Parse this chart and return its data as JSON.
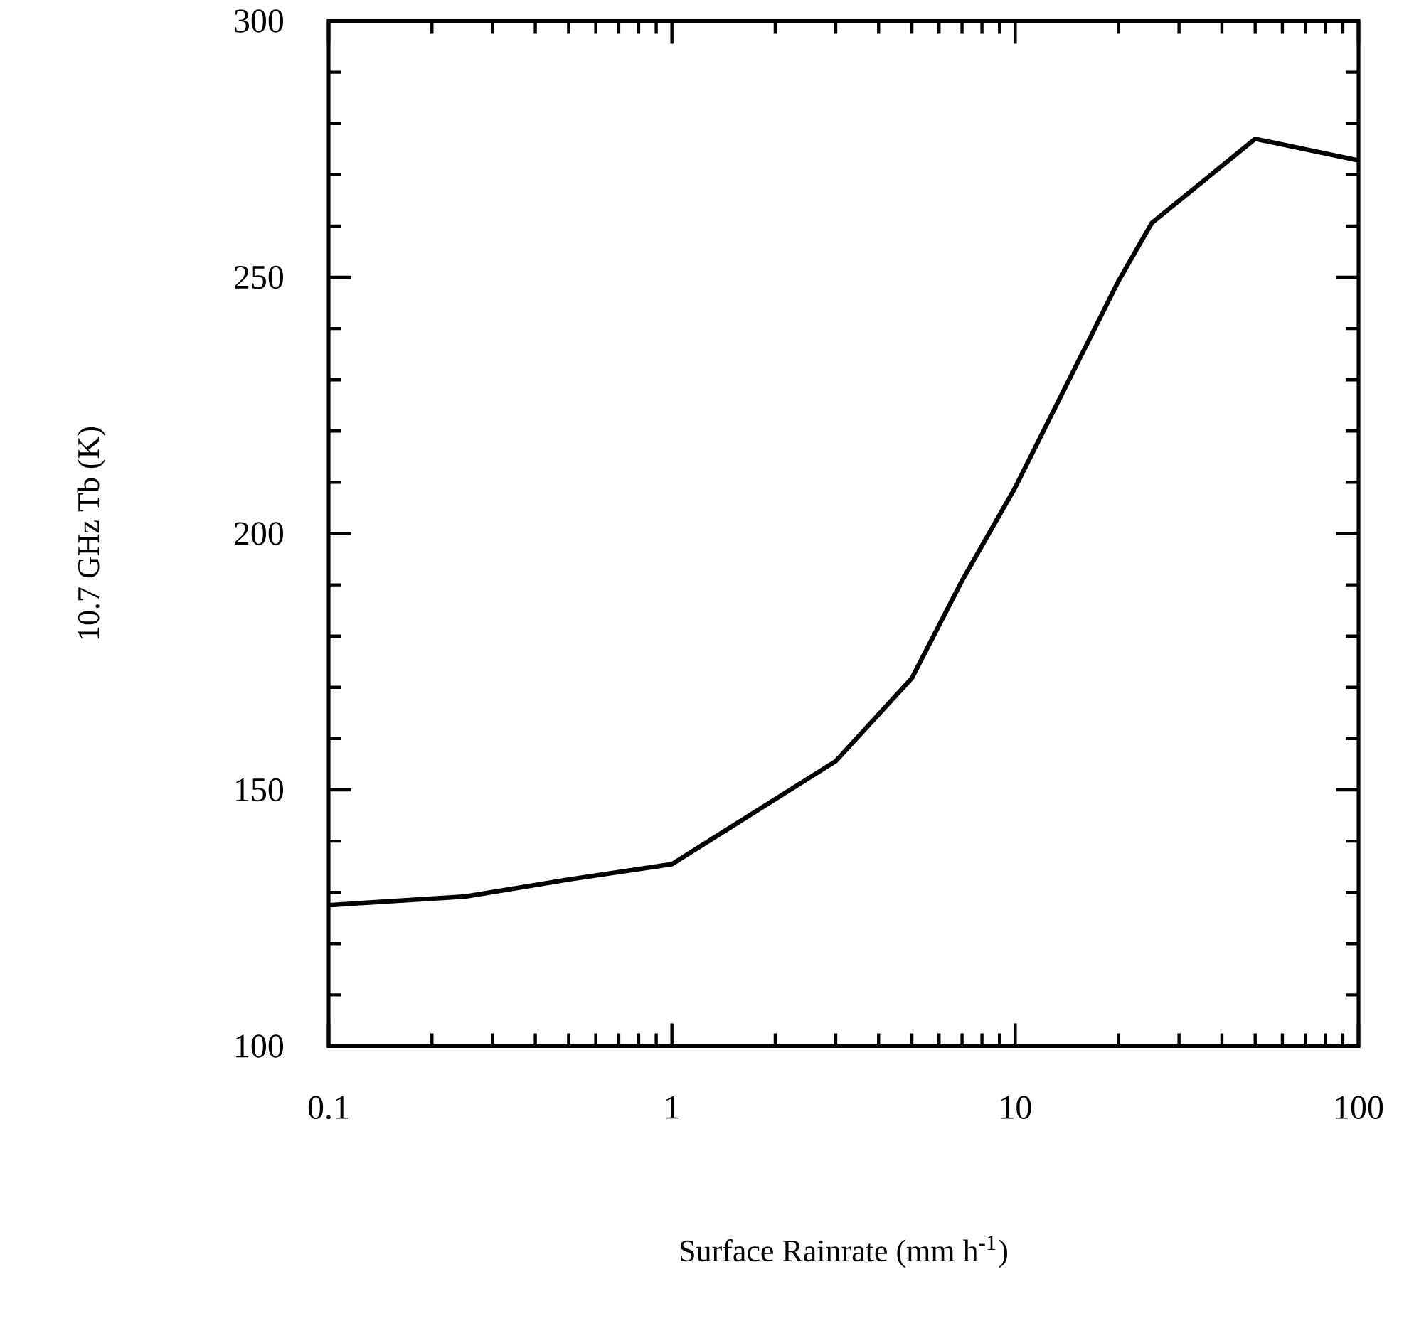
{
  "chart_data": {
    "type": "line",
    "xlabel": "Surface Rainrate (mm h$^{-1}$)",
    "ylabel": "10.7 GHz Tb (K)",
    "log": "x",
    "xlim": [
      0.1,
      100
    ],
    "xticks": [
      0.1,
      1,
      10,
      100
    ],
    "ylim": [
      100,
      300
    ],
    "yticks": [
      100,
      150,
      200,
      250,
      300
    ],
    "marker": "none",
    "line_style": "solid",
    "x": [
      0.1,
      0.25,
      0.5,
      1,
      3,
      5,
      7,
      10,
      20,
      25,
      50,
      100
    ],
    "series": [
      {
        "color": "#000000",
        "values": [
          127.5,
          129.2,
          132.5,
          135.5,
          155.6,
          171.8,
          190.8,
          209,
          249.3,
          260.6,
          277,
          272.8
        ]
      }
    ]
  }
}
